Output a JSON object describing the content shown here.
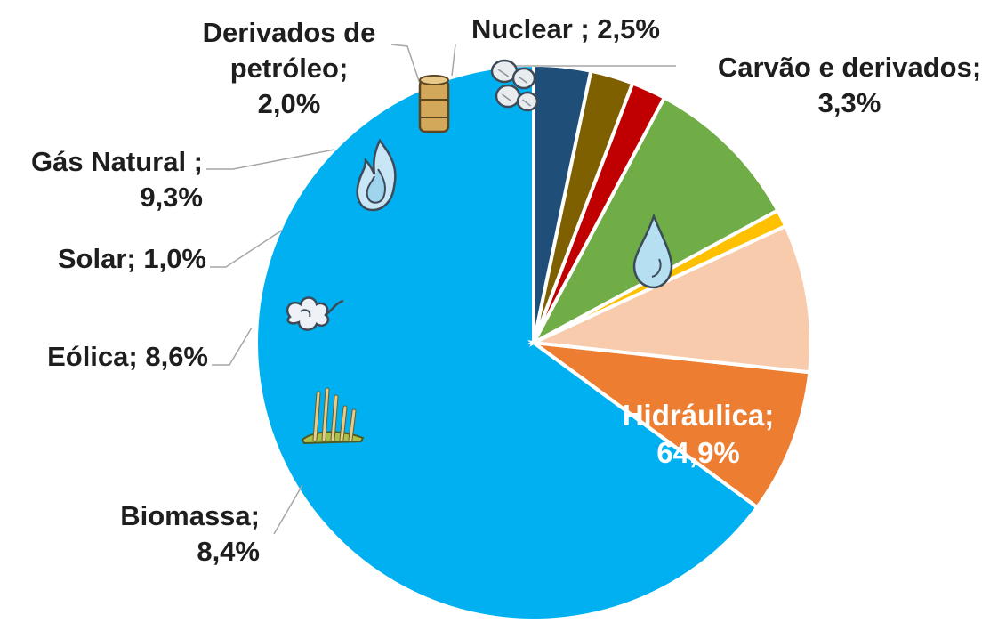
{
  "chart_data": {
    "type": "pie",
    "unit": "%",
    "title": "",
    "legend": "none",
    "slices": [
      {
        "name": "Hidráulica",
        "value": 64.9,
        "color": "#00b0f0",
        "icon": "water-drop-icon",
        "label_lines": [
          "Hidráulica;",
          "64,9%"
        ]
      },
      {
        "name": "Biomassa",
        "value": 8.4,
        "color": "#ed7d31",
        "icon": "sugarcane-icon",
        "label_lines": [
          "Biomassa;",
          "8,4%"
        ]
      },
      {
        "name": "Eólica",
        "value": 8.6,
        "color": "#f8cbad",
        "icon": "wind-icon",
        "label_lines": [
          "Eólica; 8,6%"
        ]
      },
      {
        "name": "Solar",
        "value": 1.0,
        "color": "#ffc000",
        "icon": "",
        "label_lines": [
          "Solar; 1,0%"
        ]
      },
      {
        "name": "Gás Natural",
        "value": 9.3,
        "color": "#70ad47",
        "icon": "flame-icon",
        "label_lines": [
          "Gás Natural ;",
          "9,3%"
        ]
      },
      {
        "name": "Derivados de petróleo",
        "value": 2.0,
        "color": "#c00000",
        "icon": "oil-barrel-icon",
        "label_lines": [
          "Derivados de",
          "petróleo;",
          "2,0%"
        ]
      },
      {
        "name": "Nuclear",
        "value": 2.5,
        "color": "#7f6000",
        "icon": "",
        "label_lines": [
          "Nuclear ; 2,5%"
        ]
      },
      {
        "name": "Carvão e derivados",
        "value": 3.3,
        "color": "#1f4e79",
        "icon": "coal-icon",
        "label_lines": [
          "Carvão e derivados;",
          "3,3%"
        ]
      }
    ]
  }
}
